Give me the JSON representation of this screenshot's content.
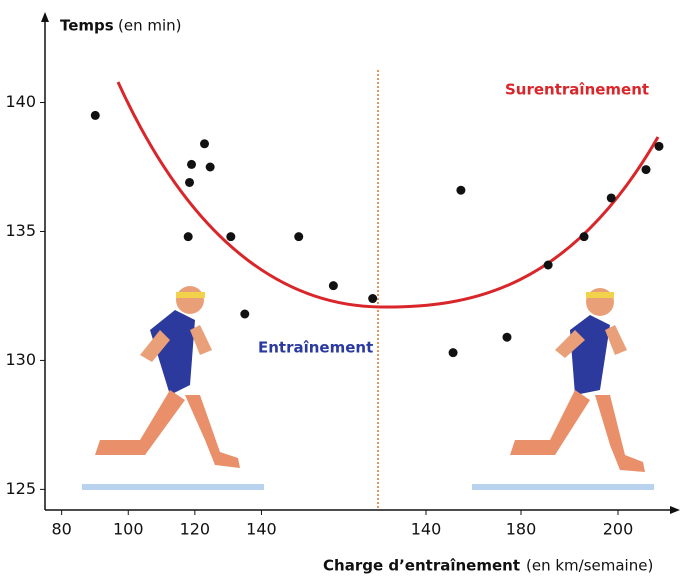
{
  "chart_data": {
    "type": "scatter",
    "y_label": "Temps",
    "y_label_unit": "(en min)",
    "x_label": "Charge d’entraînement",
    "x_label_unit": "(en km/semaine)",
    "annotations": [
      "Entraînement",
      "Surentraînement"
    ],
    "ylim": [
      124.2,
      143.2
    ],
    "yticks": [
      125,
      130,
      135,
      140
    ],
    "series": [
      {
        "color": "#111111",
        "xlim": [
          75,
          175
        ],
        "xticks": [
          80,
          100,
          120,
          140
        ],
        "x": [
          90.1,
          119.0,
          122.9,
          124.6,
          118.4,
          118.0,
          130.8,
          135.0,
          151.2,
          161.6,
          173.4
        ],
        "values": [
          139.5,
          137.6,
          138.4,
          137.5,
          136.9,
          134.8,
          134.8,
          131.8,
          134.8,
          132.9,
          132.4
        ]
      },
      {
        "color": "#111111",
        "xlim": [
          120,
          210
        ],
        "xticks": [
          140,
          180,
          200
        ],
        "x": [
          151.4,
          154.7,
          174.1,
          185.6,
          193.0,
          198.6,
          205.6,
          208.2
        ],
        "values": [
          130.3,
          136.6,
          130.9,
          133.7,
          134.8,
          136.3,
          137.4,
          138.3
        ]
      }
    ]
  }
}
